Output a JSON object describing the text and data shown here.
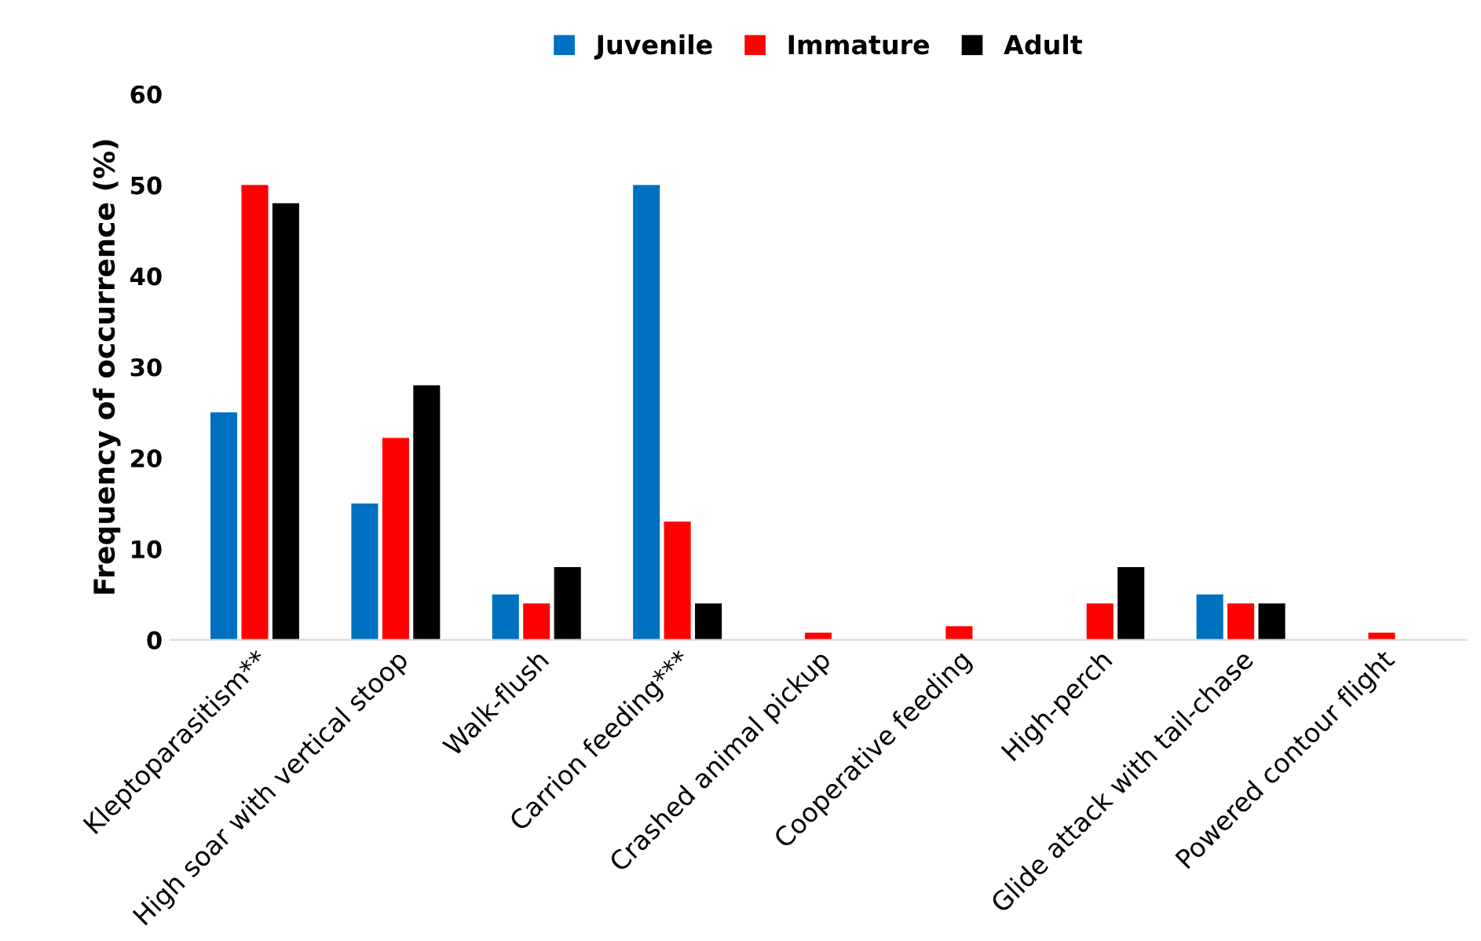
{
  "chart_data": {
    "type": "bar",
    "ylabel": "Frequency of occurrence (%)",
    "categories": [
      "Kleptoparasitism**",
      "High soar with vertical stoop",
      "Walk-flush",
      "Carrion feeding***",
      "Crashed animal pickup",
      "Cooperative feeding",
      "High-perch",
      "Glide attack with tail-chase",
      "Powered contour flight"
    ],
    "series": [
      {
        "name": "Juvenile",
        "color": "#0070c0",
        "values": [
          25,
          15,
          5,
          50,
          0,
          0,
          0,
          5,
          0
        ]
      },
      {
        "name": "Immature",
        "color": "#ff0000",
        "values": [
          50,
          22.2,
          4,
          13,
          0.8,
          1.5,
          4,
          4,
          0.8
        ]
      },
      {
        "name": "Adult",
        "color": "#000000",
        "values": [
          48,
          28,
          8,
          4,
          0,
          0,
          8,
          4,
          0
        ]
      }
    ],
    "ylim": [
      0,
      60
    ],
    "yticks": [
      0,
      10,
      20,
      30,
      40,
      50,
      60
    ],
    "grid": false,
    "legend": "top"
  }
}
